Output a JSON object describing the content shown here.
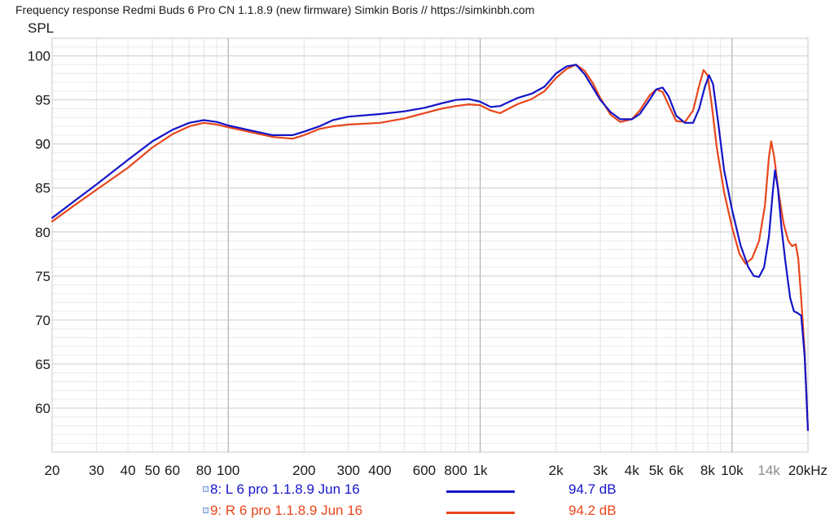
{
  "title": "Frequency response Redmi Buds 6 Pro CN 1.1.8.9 (new firmware) Simkin Boris // https://simkinbh.com",
  "chart_data": {
    "type": "line",
    "title": "Frequency response Redmi Buds 6 Pro CN 1.1.8.9 (new firmware) Simkin Boris // https://simkinbh.com",
    "ylabel": "SPL",
    "xlabel": "",
    "x_scale": "log",
    "xlim": [
      20,
      20000
    ],
    "ylim": [
      55,
      102
    ],
    "grid": true,
    "legend_position": "bottom",
    "y_ticks": [
      "60",
      "65",
      "70",
      "75",
      "80",
      "85",
      "90",
      "95",
      "100"
    ],
    "x_ticks": [
      {
        "value": 20,
        "label": "20"
      },
      {
        "value": 30,
        "label": "30"
      },
      {
        "value": 40,
        "label": "40"
      },
      {
        "value": 50,
        "label": "50"
      },
      {
        "value": 60,
        "label": "60"
      },
      {
        "value": 80,
        "label": "80"
      },
      {
        "value": 100,
        "label": "100"
      },
      {
        "value": 200,
        "label": "200"
      },
      {
        "value": 300,
        "label": "300"
      },
      {
        "value": 400,
        "label": "400"
      },
      {
        "value": 600,
        "label": "600"
      },
      {
        "value": 800,
        "label": "800"
      },
      {
        "value": 1000,
        "label": "1k"
      },
      {
        "value": 2000,
        "label": "2k"
      },
      {
        "value": 3000,
        "label": "3k"
      },
      {
        "value": 4000,
        "label": "4k"
      },
      {
        "value": 5000,
        "label": "5k"
      },
      {
        "value": 6000,
        "label": "6k"
      },
      {
        "value": 8000,
        "label": "8k"
      },
      {
        "value": 10000,
        "label": "10k"
      },
      {
        "value": 14000,
        "label": "14k",
        "muted": true
      },
      {
        "value": 20000,
        "label": "20kHz"
      }
    ],
    "series": [
      {
        "name": "8: L 6 pro 1.1.8.9 Jun 16",
        "value_label": "94.7 dB",
        "color": "#1414c8",
        "points": [
          [
            20,
            81.6
          ],
          [
            25,
            83.7
          ],
          [
            30,
            85.4
          ],
          [
            40,
            88.2
          ],
          [
            50,
            90.3
          ],
          [
            60,
            91.6
          ],
          [
            70,
            92.4
          ],
          [
            80,
            92.7
          ],
          [
            90,
            92.5
          ],
          [
            100,
            92.1
          ],
          [
            120,
            91.6
          ],
          [
            150,
            91.0
          ],
          [
            180,
            91.0
          ],
          [
            200,
            91.4
          ],
          [
            230,
            92.0
          ],
          [
            260,
            92.7
          ],
          [
            300,
            93.1
          ],
          [
            400,
            93.4
          ],
          [
            500,
            93.7
          ],
          [
            600,
            94.1
          ],
          [
            700,
            94.6
          ],
          [
            800,
            95.0
          ],
          [
            900,
            95.1
          ],
          [
            1000,
            94.8
          ],
          [
            1100,
            94.2
          ],
          [
            1200,
            94.3
          ],
          [
            1400,
            95.2
          ],
          [
            1600,
            95.7
          ],
          [
            1800,
            96.5
          ],
          [
            2000,
            98.0
          ],
          [
            2200,
            98.8
          ],
          [
            2400,
            99.0
          ],
          [
            2600,
            97.9
          ],
          [
            2800,
            96.4
          ],
          [
            3000,
            95.0
          ],
          [
            3300,
            93.6
          ],
          [
            3600,
            92.8
          ],
          [
            4000,
            92.8
          ],
          [
            4300,
            93.4
          ],
          [
            4700,
            95.0
          ],
          [
            5000,
            96.2
          ],
          [
            5300,
            96.4
          ],
          [
            5600,
            95.4
          ],
          [
            6000,
            93.2
          ],
          [
            6500,
            92.4
          ],
          [
            7000,
            92.4
          ],
          [
            7400,
            94.0
          ],
          [
            7800,
            96.5
          ],
          [
            8100,
            97.8
          ],
          [
            8400,
            96.8
          ],
          [
            8800,
            92.5
          ],
          [
            9300,
            87.0
          ],
          [
            10000,
            82.5
          ],
          [
            10800,
            78.5
          ],
          [
            11600,
            76.0
          ],
          [
            12200,
            75.0
          ],
          [
            12800,
            74.9
          ],
          [
            13400,
            76.0
          ],
          [
            14000,
            79.5
          ],
          [
            14500,
            84.5
          ],
          [
            14800,
            87.0
          ],
          [
            15200,
            85.0
          ],
          [
            15700,
            80.5
          ],
          [
            16300,
            76.5
          ],
          [
            17000,
            72.5
          ],
          [
            17600,
            71.0
          ],
          [
            18200,
            70.8
          ],
          [
            18800,
            70.5
          ],
          [
            19400,
            66.0
          ],
          [
            20000,
            57.5
          ]
        ]
      },
      {
        "name": "9: R 6 pro 1.1.8.9 Jun 16",
        "value_label": "94.2 dB",
        "color": "#e8461c",
        "points": [
          [
            20,
            81.2
          ],
          [
            25,
            83.2
          ],
          [
            30,
            84.8
          ],
          [
            40,
            87.3
          ],
          [
            50,
            89.6
          ],
          [
            60,
            91.1
          ],
          [
            70,
            92.0
          ],
          [
            80,
            92.4
          ],
          [
            90,
            92.2
          ],
          [
            100,
            91.9
          ],
          [
            120,
            91.4
          ],
          [
            150,
            90.8
          ],
          [
            180,
            90.6
          ],
          [
            200,
            91.0
          ],
          [
            230,
            91.7
          ],
          [
            260,
            92.0
          ],
          [
            300,
            92.2
          ],
          [
            400,
            92.4
          ],
          [
            500,
            92.9
          ],
          [
            600,
            93.5
          ],
          [
            700,
            94.0
          ],
          [
            800,
            94.3
          ],
          [
            900,
            94.5
          ],
          [
            1000,
            94.4
          ],
          [
            1100,
            93.8
          ],
          [
            1200,
            93.5
          ],
          [
            1400,
            94.5
          ],
          [
            1600,
            95.1
          ],
          [
            1800,
            96.0
          ],
          [
            2000,
            97.5
          ],
          [
            2200,
            98.5
          ],
          [
            2400,
            99.0
          ],
          [
            2600,
            98.3
          ],
          [
            2800,
            96.9
          ],
          [
            3000,
            95.2
          ],
          [
            3300,
            93.3
          ],
          [
            3600,
            92.5
          ],
          [
            4000,
            92.8
          ],
          [
            4300,
            93.8
          ],
          [
            4700,
            95.5
          ],
          [
            5000,
            96.2
          ],
          [
            5300,
            95.9
          ],
          [
            5600,
            94.4
          ],
          [
            6000,
            92.6
          ],
          [
            6500,
            92.5
          ],
          [
            7000,
            93.8
          ],
          [
            7400,
            96.6
          ],
          [
            7700,
            98.4
          ],
          [
            8000,
            97.8
          ],
          [
            8300,
            94.5
          ],
          [
            8700,
            89.5
          ],
          [
            9300,
            84.5
          ],
          [
            10000,
            80.5
          ],
          [
            10700,
            77.5
          ],
          [
            11300,
            76.4
          ],
          [
            12000,
            77.0
          ],
          [
            12800,
            79.0
          ],
          [
            13500,
            83.0
          ],
          [
            14000,
            88.5
          ],
          [
            14300,
            90.3
          ],
          [
            14700,
            88.5
          ],
          [
            15300,
            84.5
          ],
          [
            16000,
            81.0
          ],
          [
            16700,
            79.0
          ],
          [
            17300,
            78.4
          ],
          [
            17900,
            78.6
          ],
          [
            18300,
            77.0
          ],
          [
            18800,
            72.5
          ],
          [
            19400,
            66.5
          ],
          [
            20000,
            57.5
          ]
        ]
      }
    ]
  }
}
